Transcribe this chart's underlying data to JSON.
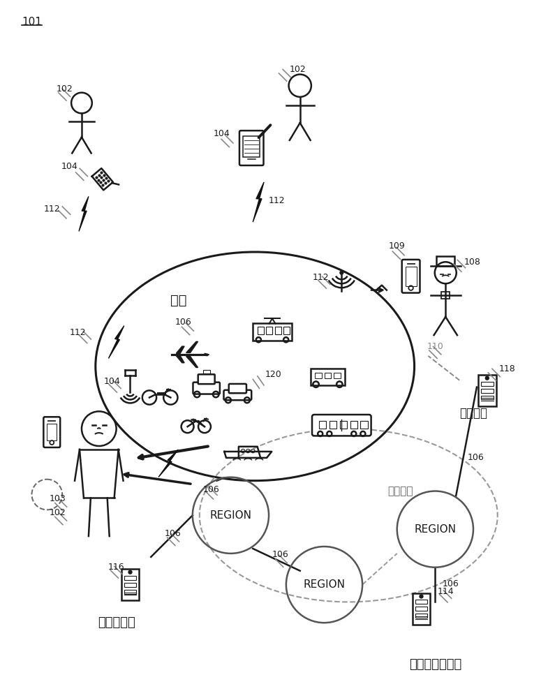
{
  "bg_color": "#ffffff",
  "line_color": "#1a1a1a",
  "label_101": "101",
  "label_102_1": "102",
  "label_102_2": "102",
  "label_102_3": "102",
  "label_103": "103",
  "label_104_1": "104",
  "label_104_2": "104",
  "label_104_3": "104",
  "label_104_4": "104",
  "label_106_1": "106",
  "label_106_2": "106",
  "label_106_3": "106",
  "label_106_4": "106",
  "label_106_5": "106",
  "label_106_6": "106",
  "label_108": "108",
  "label_109": "109",
  "label_110": "110",
  "label_112_1": "112",
  "label_112_2": "112",
  "label_112_3": "112",
  "label_114": "114",
  "label_116": "116",
  "label_118": "118",
  "label_120": "120",
  "text_region": "REGION",
  "text_quyv": "区域",
  "text_txwl": "通信网络",
  "text_yspts": "运输提供商",
  "text_ydxgl": "移动性管理系统",
  "text_qthxt": "其他系统"
}
